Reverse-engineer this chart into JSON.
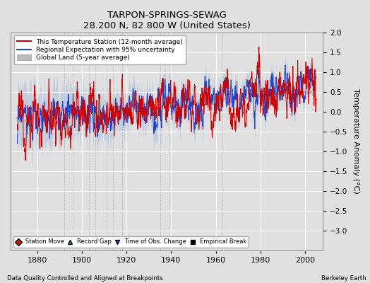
{
  "title": "TARPON-SPRINGS-SEWAG",
  "subtitle": "28.200 N, 82.800 W (United States)",
  "xlabel_note": "Data Quality Controlled and Aligned at Breakpoints",
  "xlabel_right": "Berkeley Earth",
  "ylabel": "Temperature Anomaly (°C)",
  "xmin": 1868,
  "xmax": 2008,
  "ymin": -3.5,
  "ymax": 2.0,
  "yticks": [
    -3.0,
    -2.5,
    -2.0,
    -1.5,
    -1.0,
    -0.5,
    0.0,
    0.5,
    1.0,
    1.5,
    2.0
  ],
  "xticks": [
    1880,
    1900,
    1920,
    1940,
    1960,
    1980,
    2000
  ],
  "bg_color": "#e0e0e0",
  "plot_bg_color": "#e0e0e0",
  "grid_color": "#ffffff",
  "uncertainty_color": "#b0c4de",
  "regional_line_color": "#2244cc",
  "station_line_color": "#cc0000",
  "global_land_color": "#bbbbbb",
  "empirical_break_years": [
    1892,
    1896,
    1900,
    1903,
    1906,
    1911,
    1914,
    1918,
    1935,
    1939,
    1963
  ],
  "seed": 12345
}
